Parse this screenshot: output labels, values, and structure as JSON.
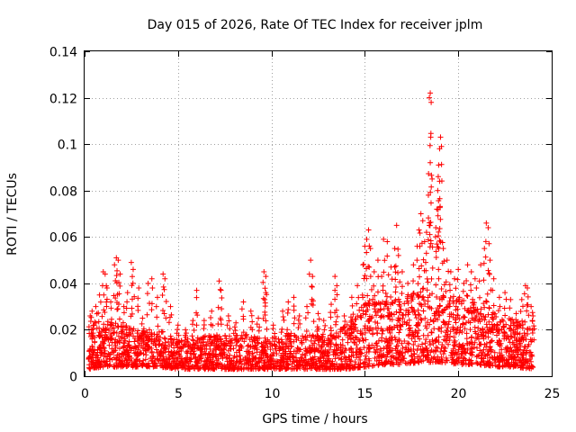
{
  "chart_data": {
    "type": "scatter",
    "title": "Day 015 of 2026, Rate Of TEC Index for receiver jplm",
    "xlabel": "GPS time / hours",
    "ylabel": "ROTI / TECUs",
    "xlim": [
      0,
      25
    ],
    "ylim": [
      0,
      0.14
    ],
    "xticks": [
      0,
      5,
      10,
      15,
      20,
      25
    ],
    "xtick_labels": [
      "0",
      "5",
      "10",
      "15",
      "20",
      "25"
    ],
    "yticks": [
      0,
      0.02,
      0.04,
      0.06,
      0.08,
      0.1,
      0.12,
      0.14
    ],
    "ytick_labels": [
      "0",
      "0.02",
      "0.04",
      "0.06",
      "0.08",
      "0.1",
      "0.12",
      "0.14"
    ],
    "grid": true,
    "marker": "+",
    "color": "#ff0000",
    "series": [
      {
        "name": "ROTI",
        "points": [
          [
            0.3,
            0.026
          ],
          [
            0.4,
            0.028
          ],
          [
            0.5,
            0.022
          ],
          [
            0.6,
            0.03
          ],
          [
            0.8,
            0.035
          ],
          [
            1.0,
            0.045
          ],
          [
            1.1,
            0.044
          ],
          [
            1.2,
            0.038
          ],
          [
            1.4,
            0.032
          ],
          [
            1.6,
            0.048
          ],
          [
            1.7,
            0.051
          ],
          [
            1.8,
            0.05
          ],
          [
            1.9,
            0.044
          ],
          [
            2.1,
            0.03
          ],
          [
            2.3,
            0.036
          ],
          [
            2.5,
            0.049
          ],
          [
            2.6,
            0.046
          ],
          [
            2.9,
            0.038
          ],
          [
            3.1,
            0.025
          ],
          [
            3.4,
            0.04
          ],
          [
            3.6,
            0.042
          ],
          [
            3.9,
            0.034
          ],
          [
            4.2,
            0.044
          ],
          [
            4.3,
            0.042
          ],
          [
            4.6,
            0.03
          ],
          [
            5.0,
            0.022
          ],
          [
            5.4,
            0.02
          ],
          [
            5.8,
            0.024
          ],
          [
            6.0,
            0.037
          ],
          [
            6.4,
            0.024
          ],
          [
            6.8,
            0.028
          ],
          [
            7.2,
            0.041
          ],
          [
            7.3,
            0.037
          ],
          [
            7.7,
            0.026
          ],
          [
            8.1,
            0.023
          ],
          [
            8.5,
            0.032
          ],
          [
            8.9,
            0.028
          ],
          [
            9.3,
            0.025
          ],
          [
            9.6,
            0.045
          ],
          [
            9.7,
            0.043
          ],
          [
            9.7,
            0.036
          ],
          [
            10.1,
            0.022
          ],
          [
            10.6,
            0.028
          ],
          [
            10.9,
            0.032
          ],
          [
            11.2,
            0.034
          ],
          [
            11.5,
            0.026
          ],
          [
            11.9,
            0.03
          ],
          [
            12.1,
            0.05
          ],
          [
            12.2,
            0.043
          ],
          [
            12.5,
            0.027
          ],
          [
            12.8,
            0.024
          ],
          [
            13.2,
            0.031
          ],
          [
            13.4,
            0.043
          ],
          [
            13.5,
            0.039
          ],
          [
            13.9,
            0.026
          ],
          [
            14.3,
            0.034
          ],
          [
            14.6,
            0.039
          ],
          [
            14.9,
            0.048
          ],
          [
            15.0,
            0.056
          ],
          [
            15.1,
            0.059
          ],
          [
            15.2,
            0.063
          ],
          [
            15.3,
            0.055
          ],
          [
            15.5,
            0.045
          ],
          [
            15.7,
            0.05
          ],
          [
            15.9,
            0.043
          ],
          [
            16.0,
            0.059
          ],
          [
            16.2,
            0.058
          ],
          [
            16.4,
            0.047
          ],
          [
            16.6,
            0.055
          ],
          [
            16.7,
            0.065
          ],
          [
            16.8,
            0.052
          ],
          [
            17.0,
            0.045
          ],
          [
            17.3,
            0.04
          ],
          [
            17.6,
            0.048
          ],
          [
            17.8,
            0.056
          ],
          [
            17.9,
            0.063
          ],
          [
            18.0,
            0.07
          ],
          [
            18.1,
            0.067
          ],
          [
            18.2,
            0.058
          ],
          [
            18.3,
            0.062
          ],
          [
            18.4,
            0.078
          ],
          [
            18.45,
            0.12
          ],
          [
            18.5,
            0.122
          ],
          [
            18.55,
            0.118
          ],
          [
            18.5,
            0.092
          ],
          [
            18.6,
            0.085
          ],
          [
            18.8,
            0.064
          ],
          [
            18.85,
            0.072
          ],
          [
            18.9,
            0.08
          ],
          [
            18.95,
            0.091
          ],
          [
            19.0,
            0.098
          ],
          [
            19.05,
            0.103
          ],
          [
            19.1,
            0.099
          ],
          [
            19.0,
            0.084
          ],
          [
            19.2,
            0.055
          ],
          [
            19.4,
            0.05
          ],
          [
            19.6,
            0.045
          ],
          [
            19.8,
            0.042
          ],
          [
            20.0,
            0.046
          ],
          [
            20.3,
            0.04
          ],
          [
            20.5,
            0.048
          ],
          [
            20.7,
            0.045
          ],
          [
            20.9,
            0.042
          ],
          [
            21.2,
            0.048
          ],
          [
            21.4,
            0.055
          ],
          [
            21.5,
            0.066
          ],
          [
            21.6,
            0.064
          ],
          [
            21.7,
            0.05
          ],
          [
            21.9,
            0.042
          ],
          [
            22.2,
            0.034
          ],
          [
            22.5,
            0.036
          ],
          [
            22.8,
            0.033
          ],
          [
            23.1,
            0.027
          ],
          [
            23.4,
            0.033
          ],
          [
            23.6,
            0.039
          ],
          [
            23.7,
            0.038
          ],
          [
            23.9,
            0.03
          ],
          [
            24.0,
            0.026
          ]
        ],
        "dense_band": [
          [
            0.2,
            0.003,
            0.016
          ],
          [
            1.0,
            0.004,
            0.02
          ],
          [
            2.0,
            0.004,
            0.02
          ],
          [
            3.0,
            0.004,
            0.018
          ],
          [
            4.0,
            0.004,
            0.018
          ],
          [
            5.0,
            0.003,
            0.014
          ],
          [
            6.0,
            0.003,
            0.015
          ],
          [
            7.0,
            0.003,
            0.016
          ],
          [
            8.0,
            0.003,
            0.017
          ],
          [
            9.0,
            0.003,
            0.016
          ],
          [
            10.0,
            0.003,
            0.014
          ],
          [
            11.0,
            0.003,
            0.017
          ],
          [
            12.0,
            0.003,
            0.016
          ],
          [
            13.0,
            0.003,
            0.015
          ],
          [
            14.0,
            0.003,
            0.02
          ],
          [
            15.0,
            0.004,
            0.028
          ],
          [
            16.0,
            0.005,
            0.032
          ],
          [
            17.0,
            0.005,
            0.03
          ],
          [
            18.0,
            0.006,
            0.033
          ],
          [
            19.0,
            0.006,
            0.034
          ],
          [
            20.0,
            0.005,
            0.03
          ],
          [
            21.0,
            0.005,
            0.028
          ],
          [
            22.0,
            0.004,
            0.024
          ],
          [
            23.0,
            0.004,
            0.022
          ],
          [
            24.0,
            0.003,
            0.018
          ]
        ]
      }
    ]
  }
}
